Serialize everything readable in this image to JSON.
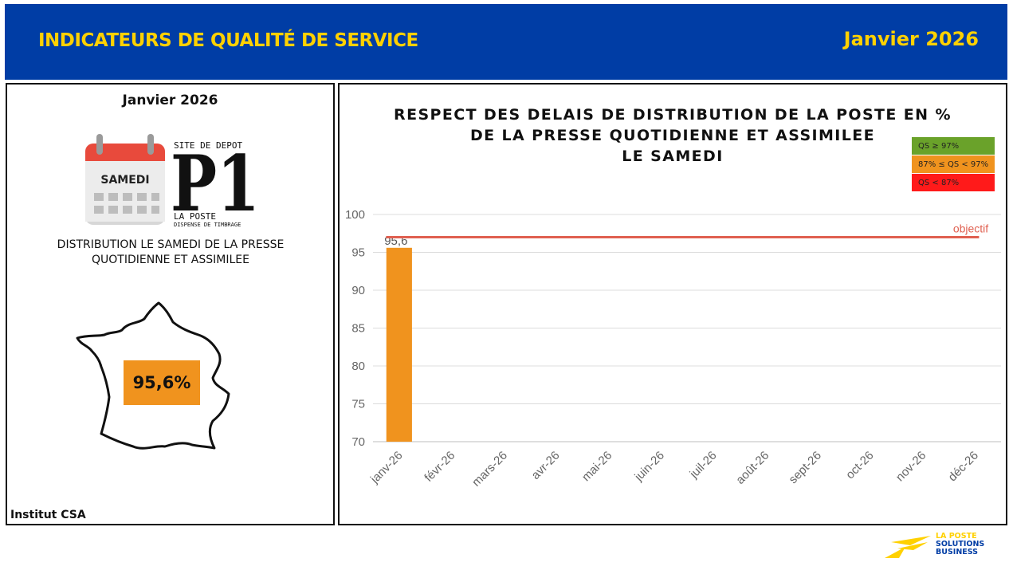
{
  "header": {
    "title": "INDICATEURS DE QUALITÉ DE SERVICE",
    "date": "Janvier 2026"
  },
  "left_panel": {
    "date": "Janvier 2026",
    "calendar_day": "SAMEDI",
    "p1": {
      "top_text": "SITE DE DEPOT",
      "big_text": "P1",
      "bottom_text": "LA POSTE",
      "small_text": "DISPENSE DE TIMBRAGE"
    },
    "description_line1": "DISTRIBUTION LE SAMEDI DE LA PRESSE",
    "description_line2": "QUOTIDIENNE ET ASSIMILEE",
    "percentage": "95,6%",
    "source": "Institut CSA"
  },
  "legend": [
    {
      "label": "QS ≥ 97%",
      "color": "#6aa22a"
    },
    {
      "label": "87% ≤ QS < 97%",
      "color": "#f0931e"
    },
    {
      "label": "QS < 87%",
      "color": "#ff1a1a"
    }
  ],
  "chart_data": {
    "type": "bar",
    "title_lines": [
      "RESPECT DES DELAIS DE DISTRIBUTION DE LA POSTE EN %",
      "DE LA PRESSE QUOTIDIENNE ET ASSIMILEE",
      "LE SAMEDI"
    ],
    "categories": [
      "janv-26",
      "févr-26",
      "mars-26",
      "avr-26",
      "mai-26",
      "juin-26",
      "juil-26",
      "août-26",
      "sept-26",
      "oct-26",
      "nov-26",
      "déc-26"
    ],
    "values": [
      95.6,
      null,
      null,
      null,
      null,
      null,
      null,
      null,
      null,
      null,
      null,
      null
    ],
    "value_labels": [
      "95,6",
      "",
      "",
      "",
      "",
      "",
      "",
      "",
      "",
      "",
      "",
      ""
    ],
    "bar_color": "#f0931e",
    "ylim": [
      70,
      100
    ],
    "yticks": [
      70,
      75,
      80,
      85,
      90,
      95,
      100
    ],
    "objective": {
      "value": 97,
      "label": "objectif",
      "color": "#e06050"
    },
    "grid": true
  },
  "logo": {
    "line1": "LA POSTE",
    "line2": "SOLUTIONS",
    "line3": "BUSINESS"
  }
}
